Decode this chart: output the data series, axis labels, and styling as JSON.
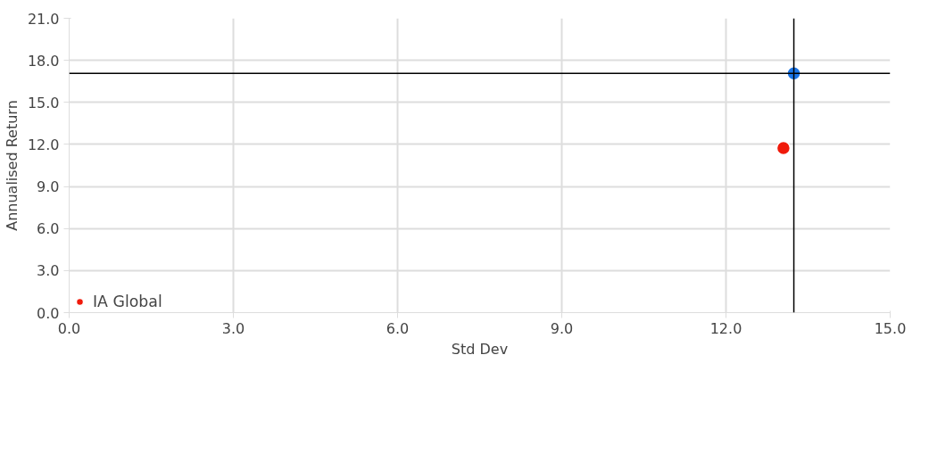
{
  "chart_data": {
    "type": "scatter",
    "xlabel": "Std Dev",
    "ylabel": "Annualised Return",
    "xlim": [
      0,
      15
    ],
    "ylim": [
      0,
      21
    ],
    "xticks": [
      {
        "value": 0,
        "label": "0.0"
      },
      {
        "value": 3,
        "label": "3.0"
      },
      {
        "value": 6,
        "label": "6.0"
      },
      {
        "value": 9,
        "label": "9.0"
      },
      {
        "value": 12,
        "label": "12.0"
      },
      {
        "value": 15,
        "label": "15.0"
      }
    ],
    "yticks": [
      {
        "value": 0,
        "label": "0.0"
      },
      {
        "value": 3,
        "label": "3.0"
      },
      {
        "value": 6,
        "label": "6.0"
      },
      {
        "value": 9,
        "label": "9.0"
      },
      {
        "value": 12,
        "label": "12.0"
      },
      {
        "value": 15,
        "label": "15.0"
      },
      {
        "value": 18,
        "label": "18.0"
      },
      {
        "value": 21,
        "label": "21.0"
      }
    ],
    "series": [
      {
        "color": "#1a75e8",
        "x": [
          13.24
        ],
        "values": [
          17.07
        ]
      },
      {
        "name": "IA Global",
        "color": "#f01a0a",
        "x": [
          13.05
        ],
        "values": [
          11.74
        ]
      }
    ],
    "ref_lines": [
      {
        "axis": "x",
        "value": 13.24,
        "color": "#000000"
      },
      {
        "axis": "y",
        "value": 17.07,
        "color": "#000000"
      }
    ],
    "marker": "circle",
    "grid": true,
    "legend": "bottom"
  }
}
